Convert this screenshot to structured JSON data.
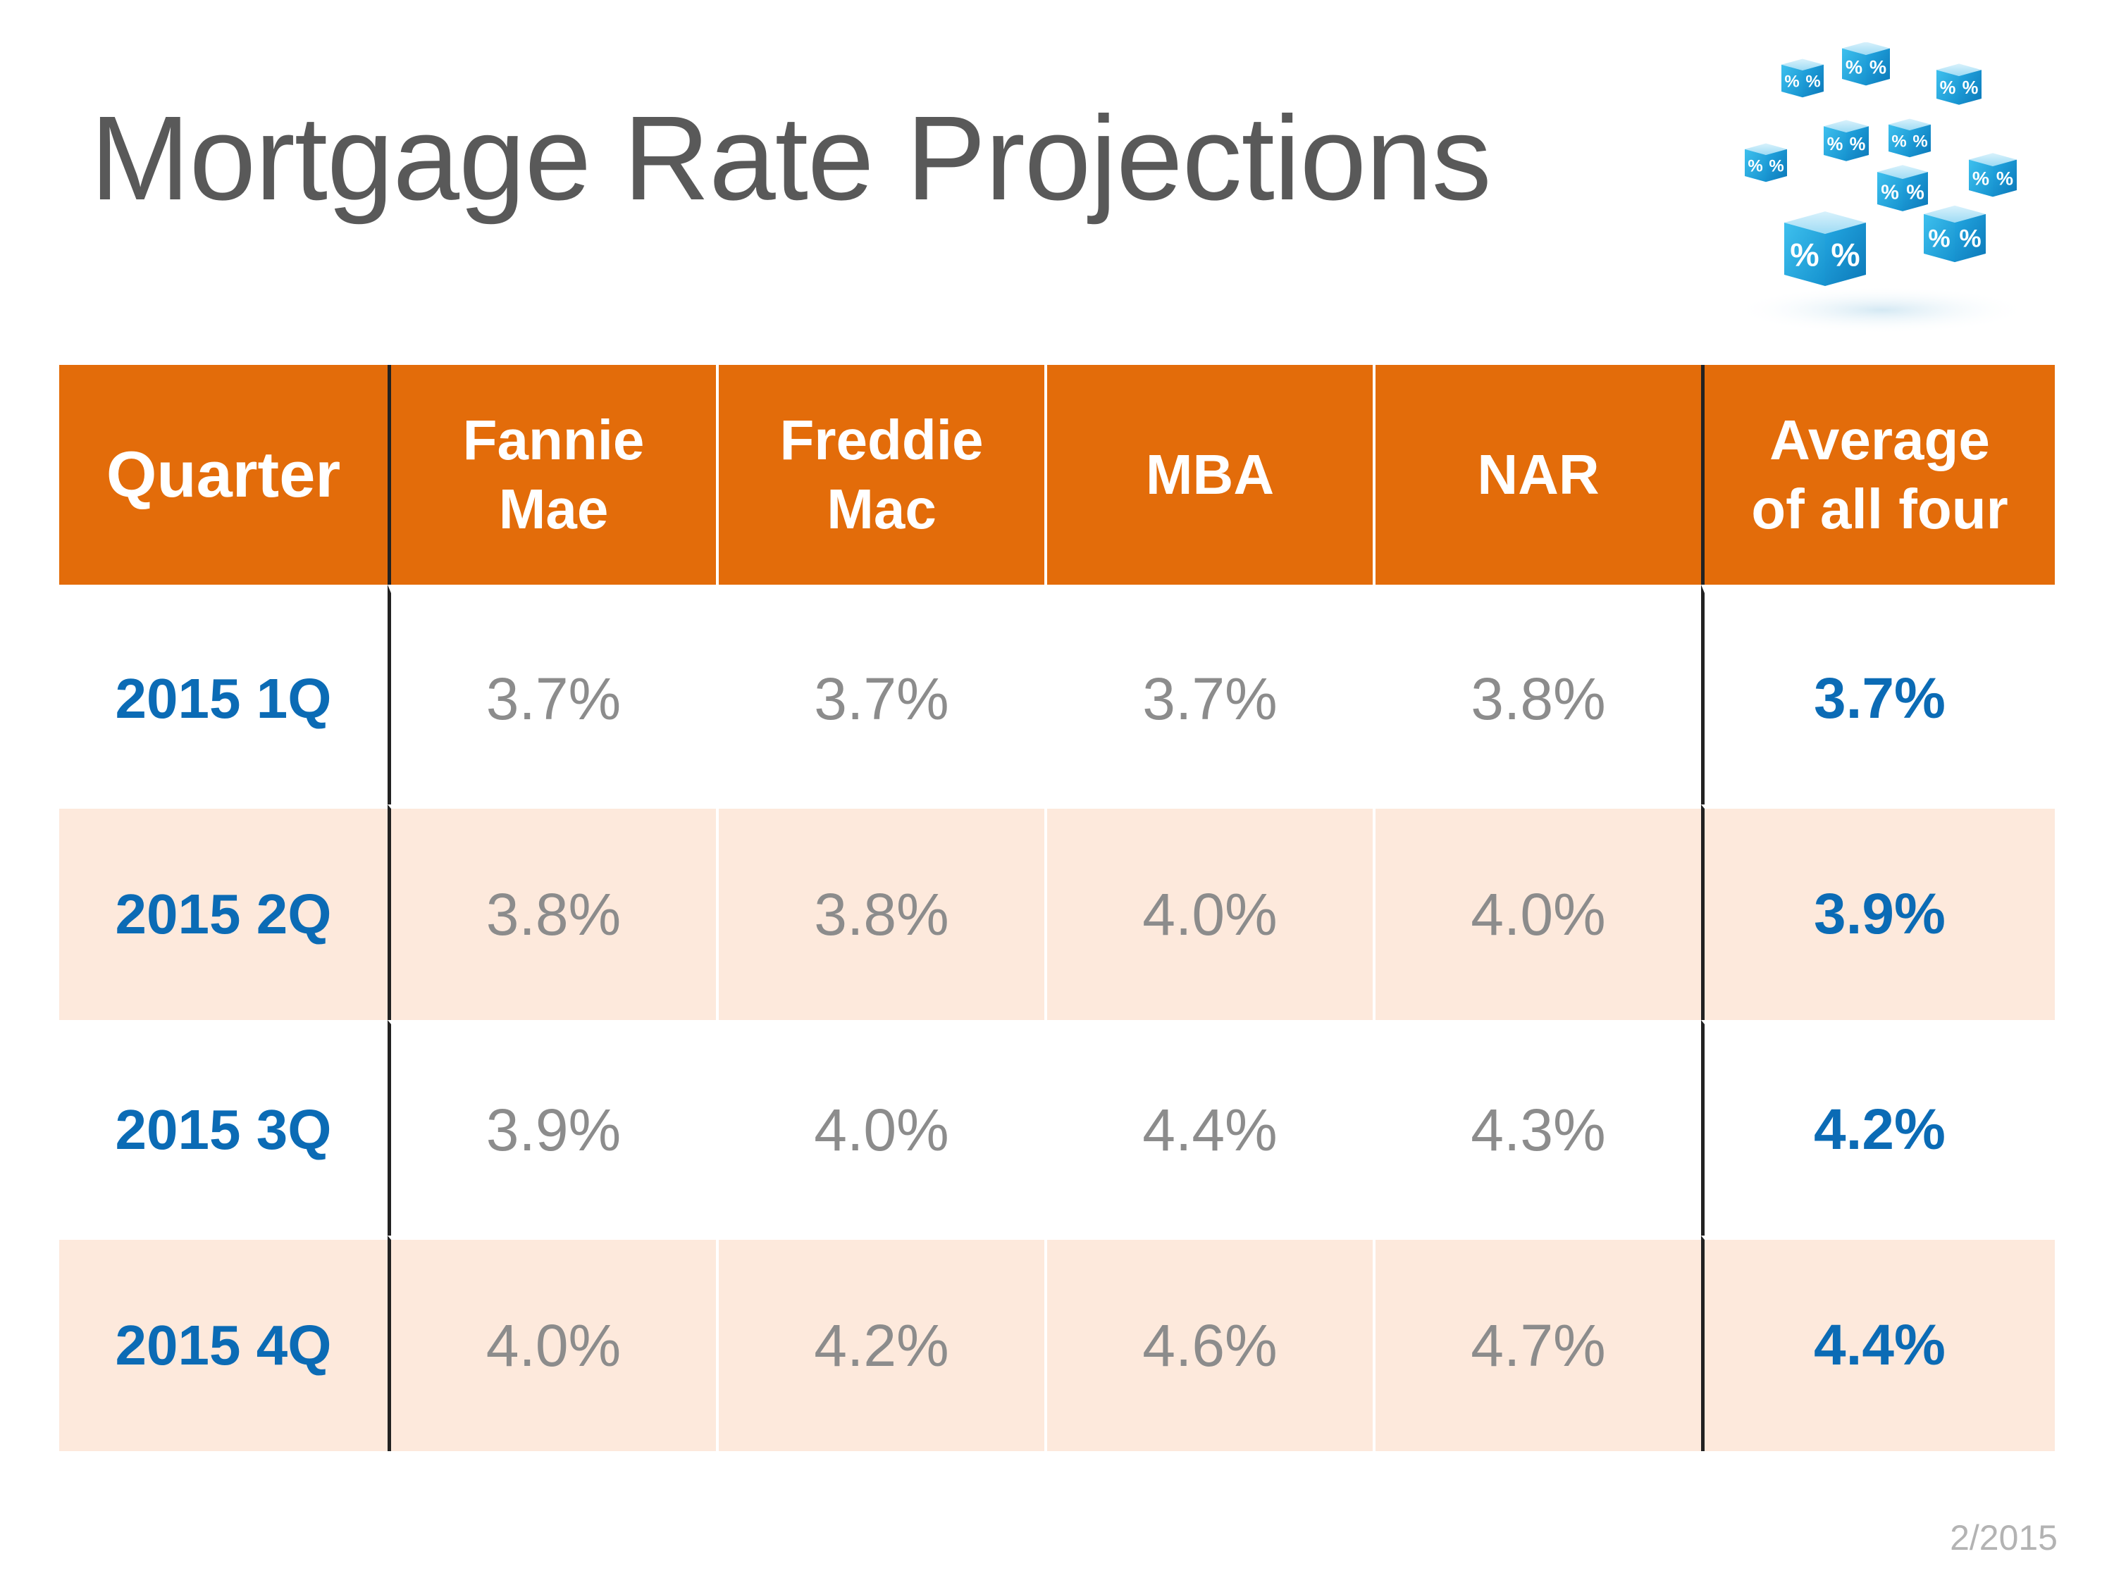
{
  "title": "Mortgage Rate Projections",
  "icon": "percent-dice-icon",
  "dice_symbol": "%",
  "colors": {
    "header_bg": "#e36c0a",
    "quarter_text": "#0b6bb5",
    "value_text": "#8c8c8c",
    "row_shade": "#fde9dc",
    "dice_blue": "#1aa3dc"
  },
  "table": {
    "headers": {
      "quarter": "Quarter",
      "fannie_mae": [
        "Fannie",
        "Mae"
      ],
      "freddie_mac": [
        "Freddie",
        "Mac"
      ],
      "mba": "MBA",
      "nar": "NAR",
      "average": [
        "Average",
        "of all four"
      ]
    },
    "rows": [
      {
        "quarter": "2015 1Q",
        "fannie_mae": "3.7%",
        "freddie_mac": "3.7%",
        "mba": "3.7%",
        "nar": "3.8%",
        "average": "3.7%"
      },
      {
        "quarter": "2015 2Q",
        "fannie_mae": "3.8%",
        "freddie_mac": "3.8%",
        "mba": "4.0%",
        "nar": "4.0%",
        "average": "3.9%"
      },
      {
        "quarter": "2015 3Q",
        "fannie_mae": "3.9%",
        "freddie_mac": "4.0%",
        "mba": "4.4%",
        "nar": "4.3%",
        "average": "4.2%"
      },
      {
        "quarter": "2015 4Q",
        "fannie_mae": "4.0%",
        "freddie_mac": "4.2%",
        "mba": "4.6%",
        "nar": "4.7%",
        "average": "4.4%"
      }
    ]
  },
  "footer_date": "2/2015"
}
